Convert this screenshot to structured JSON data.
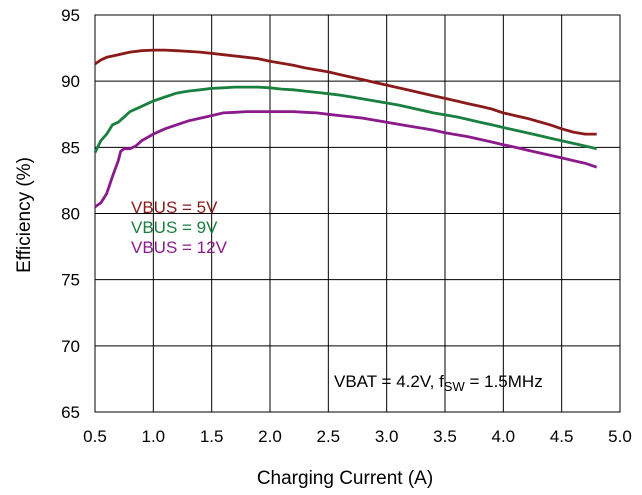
{
  "chart_data": {
    "type": "line",
    "title": "",
    "xlabel": "Charging Current (A)",
    "ylabel": "Efficiency (%)",
    "xlim": [
      0.5,
      5.0
    ],
    "ylim": [
      65,
      95
    ],
    "x_ticks": [
      "0.5",
      "1.0",
      "1.5",
      "2.0",
      "2.5",
      "3.0",
      "3.5",
      "4.0",
      "4.5",
      "5.0"
    ],
    "y_ticks": [
      "65",
      "70",
      "75",
      "80",
      "85",
      "90",
      "95"
    ],
    "grid": true,
    "legend_position": "left-middle",
    "annotation": {
      "prefix": "VBAT = 4.2V, f",
      "subscript": "SW",
      "suffix": " = 1.5MHz"
    },
    "series": [
      {
        "name": "VBUS = 5V",
        "color": "#8B1A1A",
        "points": [
          [
            0.5,
            91.3
          ],
          [
            0.55,
            91.6
          ],
          [
            0.6,
            91.8
          ],
          [
            0.7,
            92.0
          ],
          [
            0.8,
            92.2
          ],
          [
            0.9,
            92.3
          ],
          [
            1.0,
            92.35
          ],
          [
            1.1,
            92.35
          ],
          [
            1.2,
            92.3
          ],
          [
            1.3,
            92.25
          ],
          [
            1.4,
            92.2
          ],
          [
            1.5,
            92.1
          ],
          [
            1.6,
            92.0
          ],
          [
            1.7,
            91.9
          ],
          [
            1.8,
            91.8
          ],
          [
            1.9,
            91.7
          ],
          [
            2.0,
            91.5
          ],
          [
            2.1,
            91.35
          ],
          [
            2.2,
            91.2
          ],
          [
            2.3,
            91.0
          ],
          [
            2.4,
            90.85
          ],
          [
            2.5,
            90.7
          ],
          [
            2.6,
            90.5
          ],
          [
            2.7,
            90.3
          ],
          [
            2.8,
            90.1
          ],
          [
            2.9,
            89.9
          ],
          [
            3.0,
            89.7
          ],
          [
            3.1,
            89.5
          ],
          [
            3.2,
            89.3
          ],
          [
            3.3,
            89.1
          ],
          [
            3.4,
            88.9
          ],
          [
            3.5,
            88.7
          ],
          [
            3.6,
            88.5
          ],
          [
            3.7,
            88.3
          ],
          [
            3.8,
            88.1
          ],
          [
            3.9,
            87.9
          ],
          [
            4.0,
            87.6
          ],
          [
            4.1,
            87.4
          ],
          [
            4.2,
            87.2
          ],
          [
            4.3,
            86.95
          ],
          [
            4.4,
            86.7
          ],
          [
            4.5,
            86.4
          ],
          [
            4.6,
            86.15
          ],
          [
            4.7,
            86.0
          ],
          [
            4.8,
            86.0
          ]
        ]
      },
      {
        "name": "VBUS = 9V",
        "color": "#1A8040",
        "points": [
          [
            0.5,
            84.6
          ],
          [
            0.55,
            85.5
          ],
          [
            0.6,
            86.0
          ],
          [
            0.65,
            86.7
          ],
          [
            0.7,
            86.9
          ],
          [
            0.75,
            87.3
          ],
          [
            0.8,
            87.7
          ],
          [
            0.9,
            88.1
          ],
          [
            1.0,
            88.5
          ],
          [
            1.1,
            88.8
          ],
          [
            1.2,
            89.1
          ],
          [
            1.3,
            89.25
          ],
          [
            1.4,
            89.35
          ],
          [
            1.5,
            89.45
          ],
          [
            1.6,
            89.5
          ],
          [
            1.7,
            89.55
          ],
          [
            1.8,
            89.55
          ],
          [
            1.9,
            89.55
          ],
          [
            2.0,
            89.5
          ],
          [
            2.1,
            89.4
          ],
          [
            2.2,
            89.35
          ],
          [
            2.3,
            89.25
          ],
          [
            2.4,
            89.15
          ],
          [
            2.5,
            89.05
          ],
          [
            2.6,
            88.95
          ],
          [
            2.7,
            88.8
          ],
          [
            2.8,
            88.65
          ],
          [
            2.9,
            88.5
          ],
          [
            3.0,
            88.35
          ],
          [
            3.1,
            88.2
          ],
          [
            3.2,
            88.0
          ],
          [
            3.3,
            87.8
          ],
          [
            3.4,
            87.6
          ],
          [
            3.5,
            87.45
          ],
          [
            3.6,
            87.3
          ],
          [
            3.7,
            87.1
          ],
          [
            3.8,
            86.9
          ],
          [
            3.9,
            86.7
          ],
          [
            4.0,
            86.5
          ],
          [
            4.1,
            86.3
          ],
          [
            4.2,
            86.1
          ],
          [
            4.3,
            85.9
          ],
          [
            4.4,
            85.7
          ],
          [
            4.5,
            85.5
          ],
          [
            4.6,
            85.3
          ],
          [
            4.7,
            85.1
          ],
          [
            4.8,
            84.9
          ]
        ]
      },
      {
        "name": "VBUS = 12V",
        "color": "#8B1A8B",
        "points": [
          [
            0.5,
            80.5
          ],
          [
            0.55,
            80.8
          ],
          [
            0.6,
            81.5
          ],
          [
            0.65,
            82.8
          ],
          [
            0.7,
            84.0
          ],
          [
            0.72,
            84.7
          ],
          [
            0.75,
            84.9
          ],
          [
            0.8,
            84.9
          ],
          [
            0.85,
            85.1
          ],
          [
            0.9,
            85.5
          ],
          [
            1.0,
            86.0
          ],
          [
            1.1,
            86.4
          ],
          [
            1.2,
            86.7
          ],
          [
            1.3,
            87.0
          ],
          [
            1.4,
            87.2
          ],
          [
            1.5,
            87.4
          ],
          [
            1.6,
            87.6
          ],
          [
            1.7,
            87.65
          ],
          [
            1.8,
            87.7
          ],
          [
            1.9,
            87.7
          ],
          [
            2.0,
            87.7
          ],
          [
            2.1,
            87.7
          ],
          [
            2.2,
            87.7
          ],
          [
            2.3,
            87.65
          ],
          [
            2.4,
            87.6
          ],
          [
            2.5,
            87.5
          ],
          [
            2.6,
            87.4
          ],
          [
            2.7,
            87.3
          ],
          [
            2.8,
            87.2
          ],
          [
            2.9,
            87.05
          ],
          [
            3.0,
            86.9
          ],
          [
            3.1,
            86.75
          ],
          [
            3.2,
            86.6
          ],
          [
            3.3,
            86.45
          ],
          [
            3.4,
            86.3
          ],
          [
            3.5,
            86.1
          ],
          [
            3.6,
            85.95
          ],
          [
            3.7,
            85.8
          ],
          [
            3.8,
            85.6
          ],
          [
            3.9,
            85.4
          ],
          [
            4.0,
            85.2
          ],
          [
            4.1,
            85.0
          ],
          [
            4.2,
            84.8
          ],
          [
            4.3,
            84.6
          ],
          [
            4.4,
            84.4
          ],
          [
            4.5,
            84.2
          ],
          [
            4.6,
            84.0
          ],
          [
            4.7,
            83.8
          ],
          [
            4.8,
            83.5
          ]
        ]
      }
    ]
  }
}
